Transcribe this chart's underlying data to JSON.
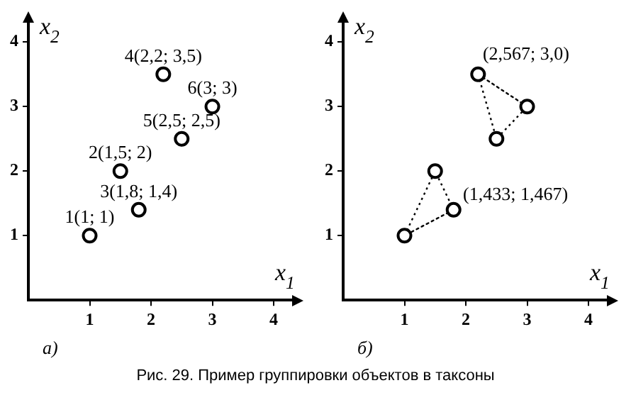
{
  "chart_data": [
    {
      "type": "scatter",
      "title": "а)",
      "xlabel": "x$_{1}$",
      "ylabel": "x$_{2}$",
      "xlim": [
        0,
        4.3
      ],
      "ylim": [
        0,
        4.3
      ],
      "xticks": [
        1,
        2,
        3,
        4
      ],
      "yticks": [
        1,
        2,
        3,
        4
      ],
      "grid": false,
      "legend": false,
      "marker": "circle",
      "annotations": [
        "Рис. 29. Пример группировки объектов в таксоны"
      ],
      "series": [
        {
          "color": "#000000",
          "x": [
            1,
            1.5,
            1.8,
            2.2,
            2.5,
            3
          ],
          "values": [
            1,
            2,
            1.4,
            3.5,
            2.5,
            3
          ],
          "value_labels": [
            "1(1; 1)",
            "2(1,5; 2)",
            "3(1,8; 1,4)",
            "4(2,2; 3,5)",
            "5(2,5; 2,5)",
            "6(3; 3)"
          ]
        }
      ]
    },
    {
      "type": "scatter",
      "title": "б)",
      "xlabel": "x$_{1}$",
      "ylabel": "x$_{2}$",
      "xlim": [
        0,
        4.3
      ],
      "ylim": [
        0,
        4.3
      ],
      "xticks": [
        1,
        2,
        3,
        4
      ],
      "yticks": [
        1,
        2,
        3,
        4
      ],
      "grid": false,
      "legend": false,
      "marker": "circle",
      "line_style": "dotted",
      "annotations": [
        {
          "text": "(1,433; 1,467)",
          "x": 1.4,
          "y": 1.2
        },
        {
          "text": "(2,567; 3,0)",
          "x": 2.6,
          "y": 3.25
        }
      ],
      "series": [
        {
          "type": "line",
          "color": "#000000",
          "x": [
            1,
            1.5,
            1.8
          ],
          "values": [
            1,
            2,
            1.4
          ]
        },
        {
          "type": "line",
          "color": "#000000",
          "x": [
            2.2,
            2.5,
            3
          ],
          "values": [
            3.5,
            2.5,
            3
          ]
        }
      ]
    }
  ]
}
